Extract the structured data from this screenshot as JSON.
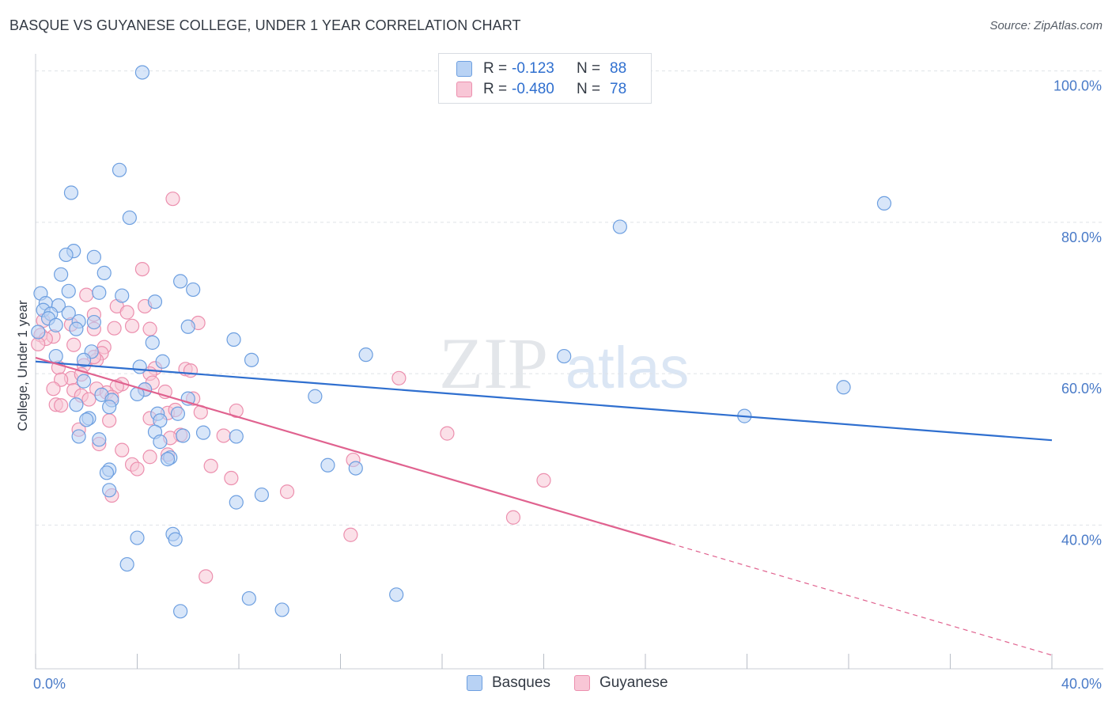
{
  "title": "BASQUE VS GUYANESE COLLEGE, UNDER 1 YEAR CORRELATION CHART",
  "source": "Source: ZipAtlas.com",
  "watermark": {
    "zip": "ZIP",
    "atlas": "atlas"
  },
  "colors": {
    "basques_fill": "#b8d2f4",
    "basques_stroke": "#6d9fe0",
    "basques_line": "#2f6fcf",
    "guyanese_fill": "#f8c6d6",
    "guyanese_stroke": "#ec8fae",
    "guyanese_line": "#e0628f",
    "grid": "#dfe3e8",
    "axis_text": "#4a7bc8"
  },
  "legend": {
    "rows": [
      {
        "r_label": "R =",
        "r_value": "-0.123",
        "n_label": "N =",
        "n_value": "88"
      },
      {
        "r_label": "R =",
        "r_value": "-0.480",
        "n_label": "N =",
        "n_value": "78"
      }
    ]
  },
  "bottom_legend": {
    "basques": "Basques",
    "guyanese": "Guyanese"
  },
  "chart_data": {
    "type": "scatter",
    "title": "BASQUE VS GUYANESE COLLEGE, UNDER 1 YEAR CORRELATION CHART",
    "xlabel": "",
    "ylabel": "College, Under 1 year",
    "xlim": [
      0,
      40
    ],
    "ylim": [
      21,
      101
    ],
    "x_tick_labels": [
      "0.0%",
      "40.0%"
    ],
    "y_ticks": [
      40,
      60,
      80,
      100
    ],
    "y_tick_labels": [
      "40.0%",
      "60.0%",
      "80.0%",
      "100.0%"
    ],
    "grid": true,
    "legend_position": "top-center",
    "series": [
      {
        "name": "Basques",
        "r": -0.123,
        "n": 88,
        "trend": {
          "x": [
            0,
            40
          ],
          "y": [
            61.6,
            51.2
          ],
          "dashed_from": null
        },
        "points": [
          [
            4.2,
            99.8
          ],
          [
            3.3,
            86.9
          ],
          [
            1.4,
            83.9
          ],
          [
            3.7,
            80.6
          ],
          [
            33.4,
            82.5
          ],
          [
            23.0,
            79.4
          ],
          [
            1.5,
            76.2
          ],
          [
            1.2,
            75.7
          ],
          [
            2.3,
            75.4
          ],
          [
            2.7,
            73.3
          ],
          [
            1.0,
            73.1
          ],
          [
            5.7,
            72.2
          ],
          [
            0.2,
            70.6
          ],
          [
            1.3,
            70.9
          ],
          [
            2.5,
            70.7
          ],
          [
            3.4,
            70.3
          ],
          [
            6.2,
            71.1
          ],
          [
            0.4,
            69.3
          ],
          [
            0.9,
            69.0
          ],
          [
            4.7,
            69.5
          ],
          [
            0.3,
            68.4
          ],
          [
            0.6,
            67.9
          ],
          [
            1.3,
            68.0
          ],
          [
            0.5,
            67.3
          ],
          [
            1.7,
            66.9
          ],
          [
            0.8,
            66.4
          ],
          [
            2.3,
            66.8
          ],
          [
            6.0,
            66.2
          ],
          [
            1.6,
            65.9
          ],
          [
            0.1,
            65.5
          ],
          [
            7.8,
            64.5
          ],
          [
            4.6,
            64.1
          ],
          [
            2.2,
            62.9
          ],
          [
            0.8,
            62.3
          ],
          [
            13.0,
            62.5
          ],
          [
            20.8,
            62.3
          ],
          [
            1.9,
            61.8
          ],
          [
            5.0,
            61.6
          ],
          [
            8.5,
            61.8
          ],
          [
            4.1,
            60.9
          ],
          [
            31.8,
            58.2
          ],
          [
            1.9,
            59.0
          ],
          [
            4.3,
            57.9
          ],
          [
            2.6,
            57.2
          ],
          [
            3.0,
            56.5
          ],
          [
            6.0,
            56.7
          ],
          [
            11.0,
            57.0
          ],
          [
            4.0,
            57.3
          ],
          [
            1.6,
            55.9
          ],
          [
            2.9,
            55.6
          ],
          [
            4.8,
            54.7
          ],
          [
            5.6,
            54.7
          ],
          [
            27.9,
            54.4
          ],
          [
            2.1,
            54.1
          ],
          [
            4.9,
            53.8
          ],
          [
            2.0,
            53.9
          ],
          [
            4.7,
            52.3
          ],
          [
            6.6,
            52.2
          ],
          [
            7.9,
            51.7
          ],
          [
            1.7,
            51.7
          ],
          [
            2.5,
            51.3
          ],
          [
            5.8,
            51.8
          ],
          [
            4.9,
            51.0
          ],
          [
            5.3,
            48.9
          ],
          [
            5.2,
            48.7
          ],
          [
            11.5,
            47.9
          ],
          [
            2.9,
            47.3
          ],
          [
            12.6,
            47.5
          ],
          [
            2.8,
            46.9
          ],
          [
            2.9,
            44.6
          ],
          [
            8.9,
            44.0
          ],
          [
            7.9,
            43.0
          ],
          [
            4.0,
            38.3
          ],
          [
            5.4,
            38.8
          ],
          [
            5.5,
            38.1
          ],
          [
            3.6,
            34.8
          ],
          [
            14.2,
            30.8
          ],
          [
            8.4,
            30.3
          ],
          [
            9.7,
            28.8
          ],
          [
            5.7,
            28.6
          ]
        ]
      },
      {
        "name": "Guyanese",
        "r": -0.48,
        "n": 78,
        "trend": {
          "x": [
            0,
            40
          ],
          "y": [
            62.1,
            22.8
          ],
          "dashed_from": 25.0
        },
        "points": [
          [
            5.4,
            83.1
          ],
          [
            4.2,
            73.8
          ],
          [
            2.0,
            70.4
          ],
          [
            3.2,
            68.9
          ],
          [
            4.3,
            68.9
          ],
          [
            3.6,
            68.1
          ],
          [
            2.3,
            67.8
          ],
          [
            6.4,
            66.7
          ],
          [
            1.4,
            66.5
          ],
          [
            3.8,
            66.3
          ],
          [
            2.3,
            65.9
          ],
          [
            3.1,
            66.0
          ],
          [
            4.5,
            65.9
          ],
          [
            0.2,
            65.1
          ],
          [
            0.7,
            64.9
          ],
          [
            0.4,
            64.6
          ],
          [
            0.1,
            63.9
          ],
          [
            1.5,
            63.8
          ],
          [
            2.7,
            63.5
          ],
          [
            2.6,
            62.7
          ],
          [
            2.4,
            61.8
          ],
          [
            1.9,
            61.1
          ],
          [
            4.7,
            60.7
          ],
          [
            5.9,
            60.6
          ],
          [
            0.9,
            60.8
          ],
          [
            6.1,
            60.4
          ],
          [
            4.5,
            60.0
          ],
          [
            1.4,
            59.4
          ],
          [
            1.8,
            59.9
          ],
          [
            14.3,
            59.4
          ],
          [
            1.0,
            59.2
          ],
          [
            3.4,
            58.6
          ],
          [
            4.6,
            58.8
          ],
          [
            3.2,
            58.3
          ],
          [
            2.4,
            58.0
          ],
          [
            4.3,
            57.9
          ],
          [
            1.5,
            57.8
          ],
          [
            0.7,
            58.0
          ],
          [
            2.8,
            57.5
          ],
          [
            5.1,
            57.6
          ],
          [
            1.8,
            57.1
          ],
          [
            6.2,
            56.7
          ],
          [
            2.1,
            56.6
          ],
          [
            3.0,
            56.9
          ],
          [
            0.8,
            55.9
          ],
          [
            1.0,
            55.8
          ],
          [
            7.9,
            55.1
          ],
          [
            5.2,
            54.8
          ],
          [
            6.5,
            54.9
          ],
          [
            4.5,
            54.1
          ],
          [
            2.9,
            53.8
          ],
          [
            1.7,
            52.6
          ],
          [
            16.2,
            52.1
          ],
          [
            7.4,
            51.8
          ],
          [
            5.7,
            51.9
          ],
          [
            5.3,
            51.5
          ],
          [
            2.5,
            50.7
          ],
          [
            3.4,
            49.9
          ],
          [
            5.2,
            49.3
          ],
          [
            4.5,
            49.0
          ],
          [
            3.8,
            48.0
          ],
          [
            6.9,
            47.8
          ],
          [
            12.5,
            48.6
          ],
          [
            4.0,
            47.4
          ],
          [
            20.0,
            45.9
          ],
          [
            7.7,
            46.2
          ],
          [
            9.9,
            44.4
          ],
          [
            3.0,
            43.9
          ],
          [
            18.8,
            41.0
          ],
          [
            12.4,
            38.7
          ],
          [
            6.7,
            33.2
          ],
          [
            0.3,
            67.0
          ],
          [
            2.3,
            62.2
          ],
          [
            5.5,
            55.2
          ]
        ]
      }
    ]
  }
}
